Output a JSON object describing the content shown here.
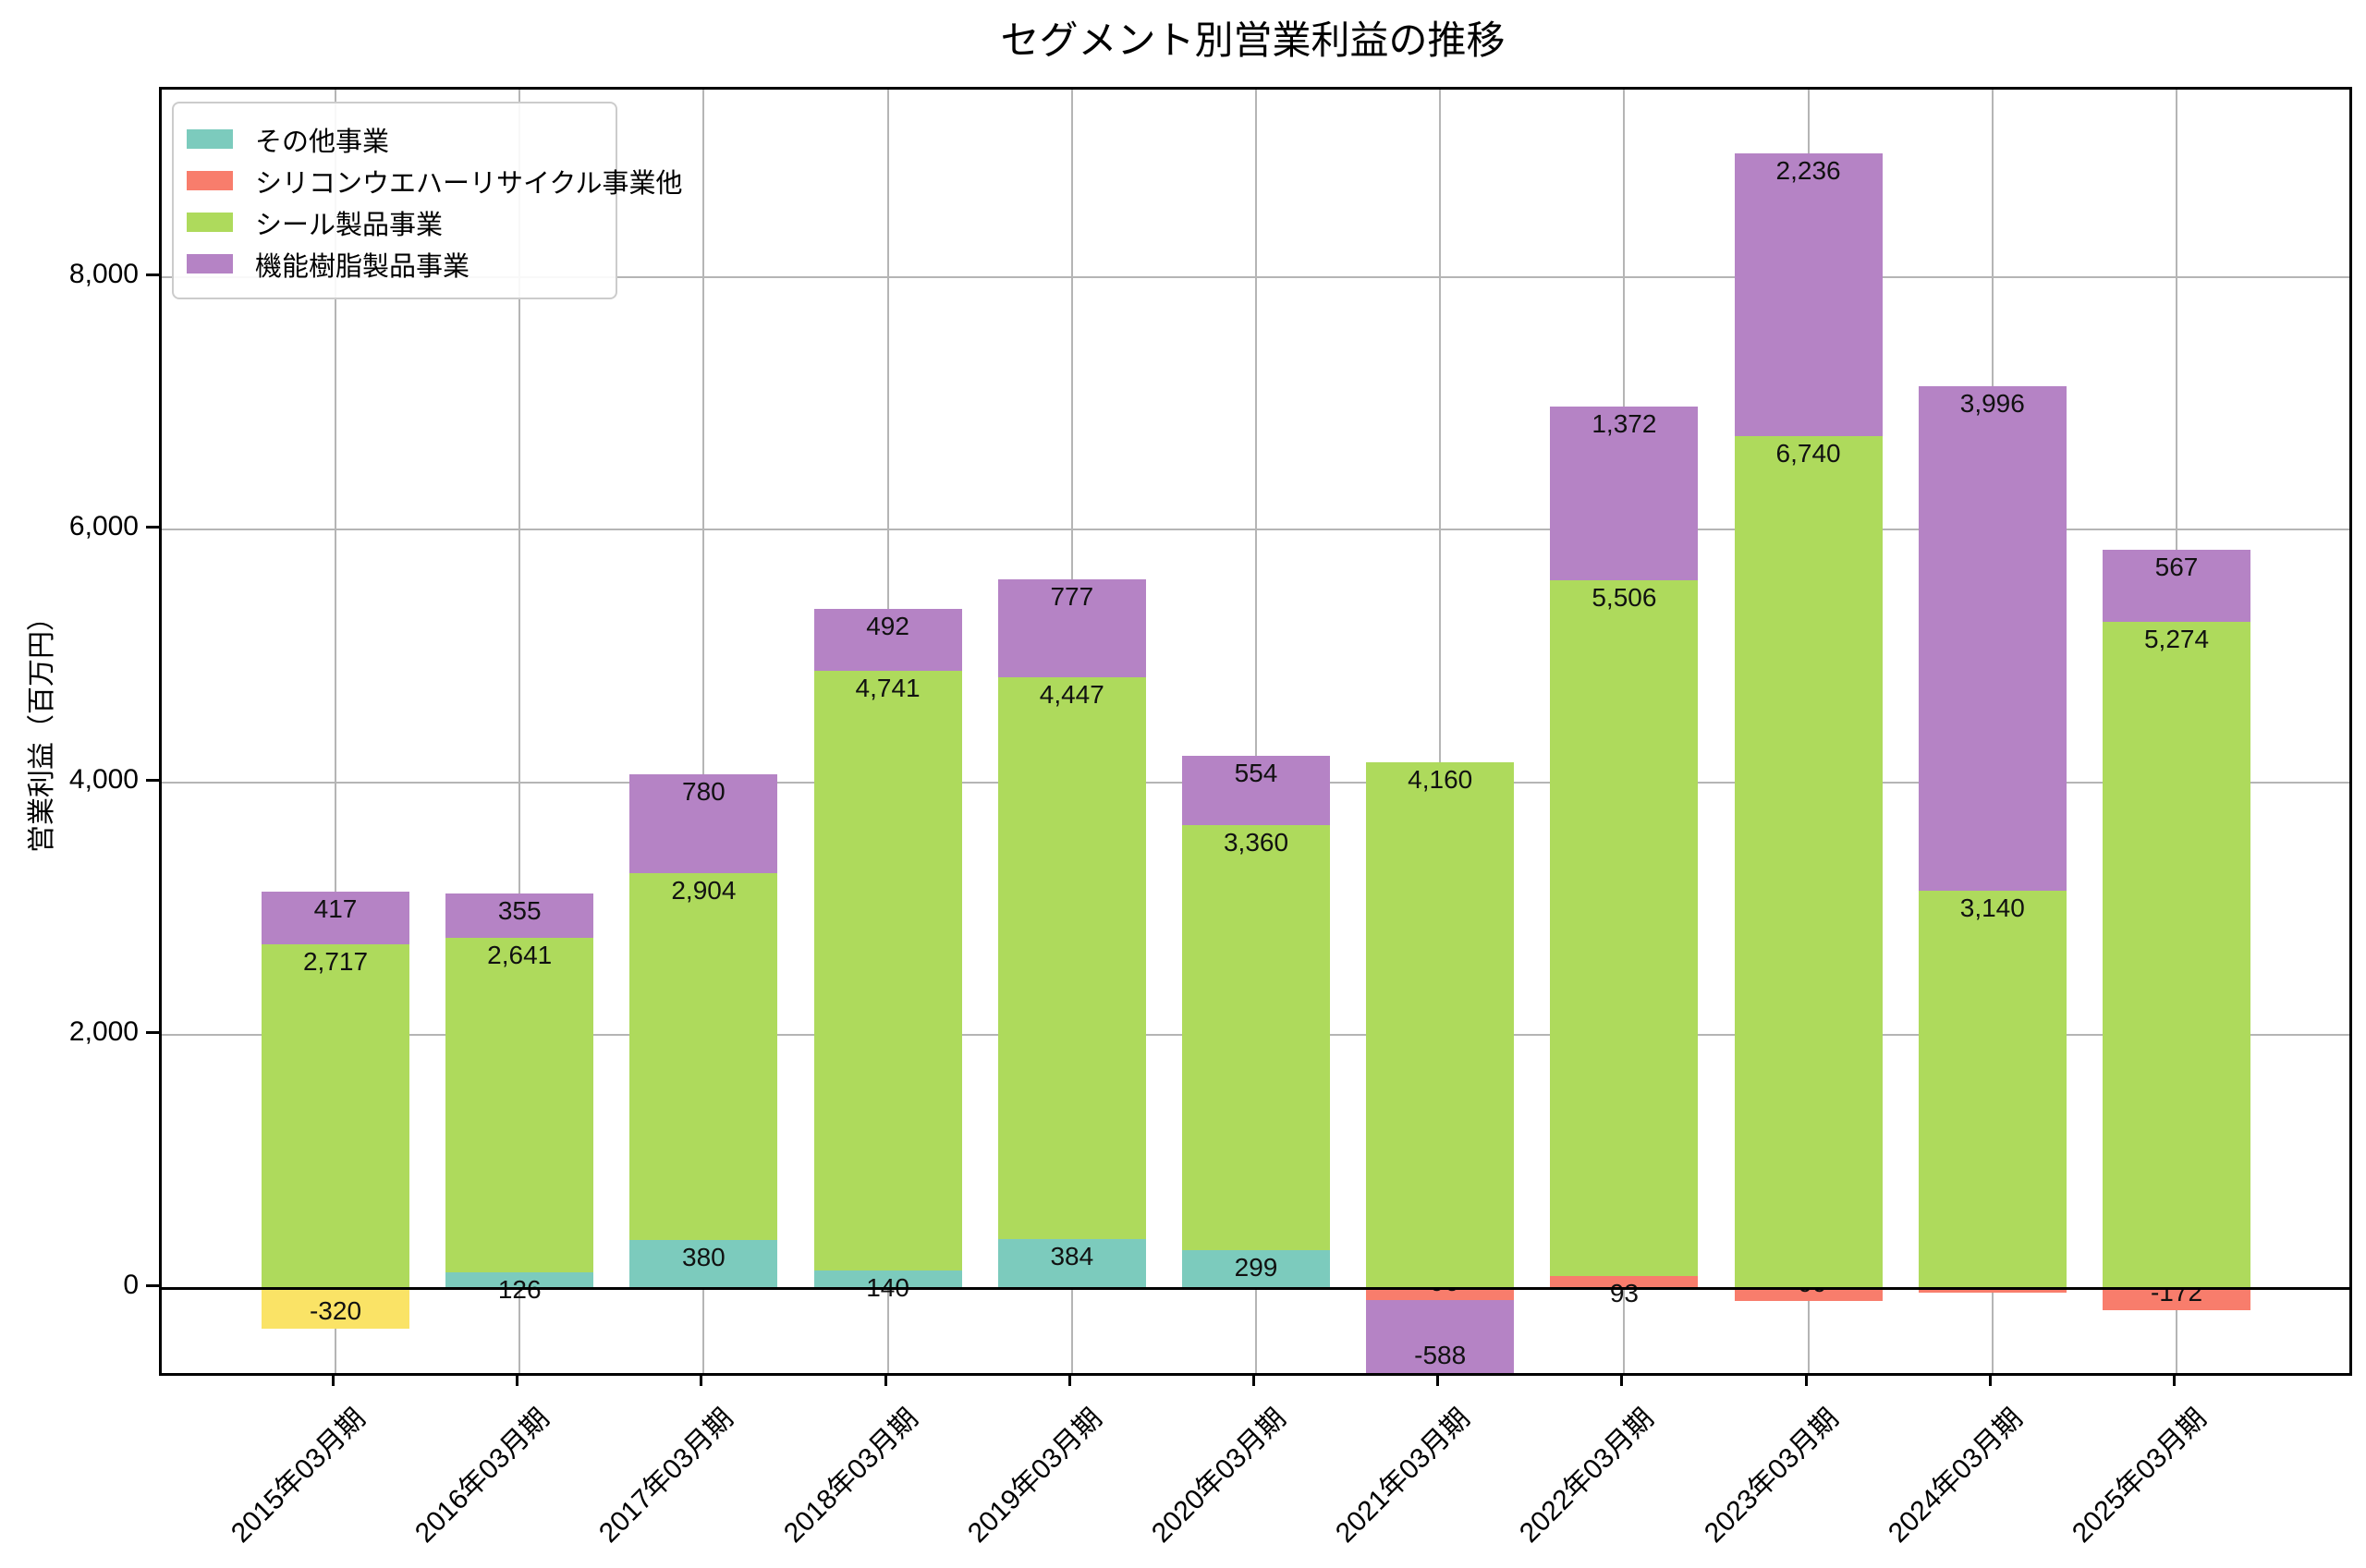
{
  "title": "セグメント別営業利益の推移",
  "y_axis": {
    "label": "営業利益（百万円）",
    "ticks": [
      0,
      2000,
      4000,
      6000,
      8000
    ],
    "tick_labels": [
      "0",
      "2,000",
      "4,000",
      "6,000",
      "8,000"
    ]
  },
  "x_axis": {
    "categories": [
      "2015年03月期",
      "2016年03月期",
      "2017年03月期",
      "2018年03月期",
      "2019年03月期",
      "2020年03月期",
      "2021年03月期",
      "2022年03月期",
      "2023年03月期",
      "2024年03月期",
      "2025年03月期"
    ]
  },
  "legend": {
    "items": [
      {
        "label": "その他事業",
        "color": "#7ccbbd"
      },
      {
        "label": "シリコンウエハーリサイクル事業他",
        "color": "#f87d6c"
      },
      {
        "label": "シール製品事業",
        "color": "#aeda5c"
      },
      {
        "label": "機能樹脂製品事業",
        "color": "#b583c5"
      }
    ]
  },
  "chart_data": {
    "type": "bar",
    "stacked": true,
    "title": "セグメント別営業利益の推移",
    "ylabel": "営業利益（百万円）",
    "xlabel": "",
    "grid": true,
    "legend_position": "upper-left",
    "ylim": [
      -684,
      9481
    ],
    "categories": [
      "2015年03月期",
      "2016年03月期",
      "2017年03月期",
      "2018年03月期",
      "2019年03月期",
      "2020年03月期",
      "2021年03月期",
      "2022年03月期",
      "2023年03月期",
      "2024年03月期",
      "2025年03月期"
    ],
    "series": [
      {
        "name": "その他事業",
        "color": "#7ccbbd",
        "in_legend": true,
        "values": [
          null,
          126,
          380,
          140,
          384,
          299,
          null,
          null,
          null,
          null,
          null
        ]
      },
      {
        "name": "シリコンウエハーリサイクル事業他",
        "color": "#f87d6c",
        "in_legend": true,
        "values": [
          null,
          null,
          null,
          null,
          null,
          null,
          -96,
          93,
          -99,
          -34,
          -172
        ]
      },
      {
        "name": "シール製品事業",
        "color": "#aeda5c",
        "in_legend": true,
        "values": [
          2717,
          2641,
          2904,
          4741,
          4447,
          3360,
          4160,
          5506,
          6740,
          3140,
          5274
        ]
      },
      {
        "name": "機能樹脂製品事業",
        "color": "#b583c5",
        "in_legend": true,
        "values": [
          417,
          355,
          780,
          492,
          777,
          554,
          -588,
          1372,
          2236,
          3996,
          567
        ]
      },
      {
        "name": "",
        "color": "#fae366",
        "in_legend": false,
        "values": [
          -320,
          null,
          null,
          null,
          null,
          null,
          null,
          null,
          null,
          null,
          null
        ]
      }
    ]
  }
}
